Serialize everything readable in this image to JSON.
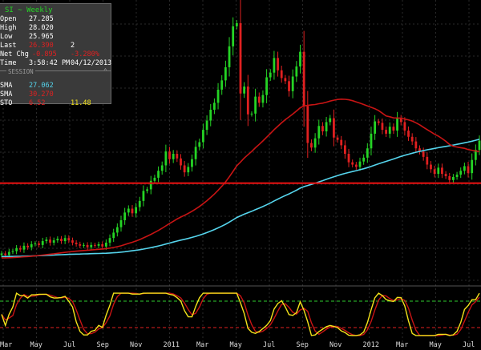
{
  "panel": {
    "title": "SI ~ Weekly",
    "open_label": "Open",
    "open_value": "27.285",
    "high_label": "High",
    "high_value": "28.020",
    "low_label": "Low",
    "low_value": "25.965",
    "last_label": "Last",
    "last_value": "26.390",
    "last_extra": "2",
    "netchg_label": "Net Chg",
    "netchg_value": "-0.895",
    "netchg_pct": "-3.280%",
    "time_label": "Time",
    "time_value": "3:58:42 PM",
    "date_value": "04/12/2013",
    "session_label": "SESSION",
    "ma1_label": "SMA",
    "ma1_value": "27.062",
    "ma2_label": "SMA",
    "ma2_value": "30.270",
    "sto_label": "STO",
    "sto_k": "6.52",
    "sto_d": "11.48"
  },
  "colors": {
    "up": "#25d425",
    "down": "#e02020",
    "sma_short": "#c81414",
    "sma_long": "#55d4ec",
    "sto_k": "#f4e31a",
    "sto_d": "#c81414",
    "support": "#e01010",
    "stoch_upper": "#2ecc2e",
    "stoch_lower": "#e02020"
  },
  "chart_data": {
    "type": "candlestick",
    "ylim": [
      13,
      50
    ],
    "support_level": 26.3,
    "x_ticks": [
      "Mar",
      "May",
      "Jul",
      "Sep",
      "Nov",
      "2011",
      "Mar",
      "May",
      "Jul",
      "Sep",
      "Nov",
      "2012",
      "Mar",
      "May",
      "Jul"
    ],
    "weekly_close": [
      17.2,
      17.0,
      17.4,
      17.5,
      17.9,
      17.7,
      18.2,
      18.0,
      18.4,
      18.5,
      18.3,
      18.8,
      19.0,
      18.6,
      18.9,
      19.1,
      18.8,
      19.2,
      18.9,
      18.6,
      18.4,
      18.2,
      18.3,
      18.0,
      18.3,
      18.2,
      18.4,
      18.1,
      18.6,
      19.2,
      19.9,
      20.6,
      21.5,
      22.5,
      23.0,
      22.4,
      23.2,
      24.0,
      25.3,
      25.5,
      26.6,
      27.0,
      27.9,
      28.6,
      30.4,
      29.4,
      30.1,
      29.5,
      28.6,
      27.7,
      28.4,
      29.4,
      31.0,
      31.6,
      33.2,
      34.4,
      35.8,
      36.7,
      38.4,
      39.6,
      41.3,
      44.0,
      46.6,
      47.0,
      37.9,
      38.8,
      35.2,
      35.3,
      37.5,
      36.7,
      37.7,
      40.0,
      40.6,
      42.5,
      40.9,
      39.9,
      39.5,
      38.2,
      40.1,
      41.4,
      43.3,
      36.3,
      31.5,
      30.9,
      32.1,
      33.7,
      33.0,
      34.2,
      34.7,
      32.2,
      31.9,
      31.2,
      30.1,
      29.0,
      28.7,
      28.4,
      29.1,
      29.6,
      30.8,
      32.7,
      34.3,
      34.1,
      33.2,
      32.7,
      33.6,
      33.1,
      34.7,
      34.2,
      33.1,
      32.3,
      31.7,
      30.8,
      30.4,
      29.7,
      28.7,
      28.1,
      27.5,
      28.3,
      27.5,
      27.2,
      26.7,
      27.1,
      27.4,
      27.9,
      28.5,
      27.6,
      29.3,
      30.6,
      31.8
    ],
    "sma_short_last": 30.27,
    "sma_long_last": 27.062,
    "stoch": {
      "upper_level": 80,
      "lower_level": 20,
      "k_last": 6.52,
      "d_last": 11.48
    }
  }
}
